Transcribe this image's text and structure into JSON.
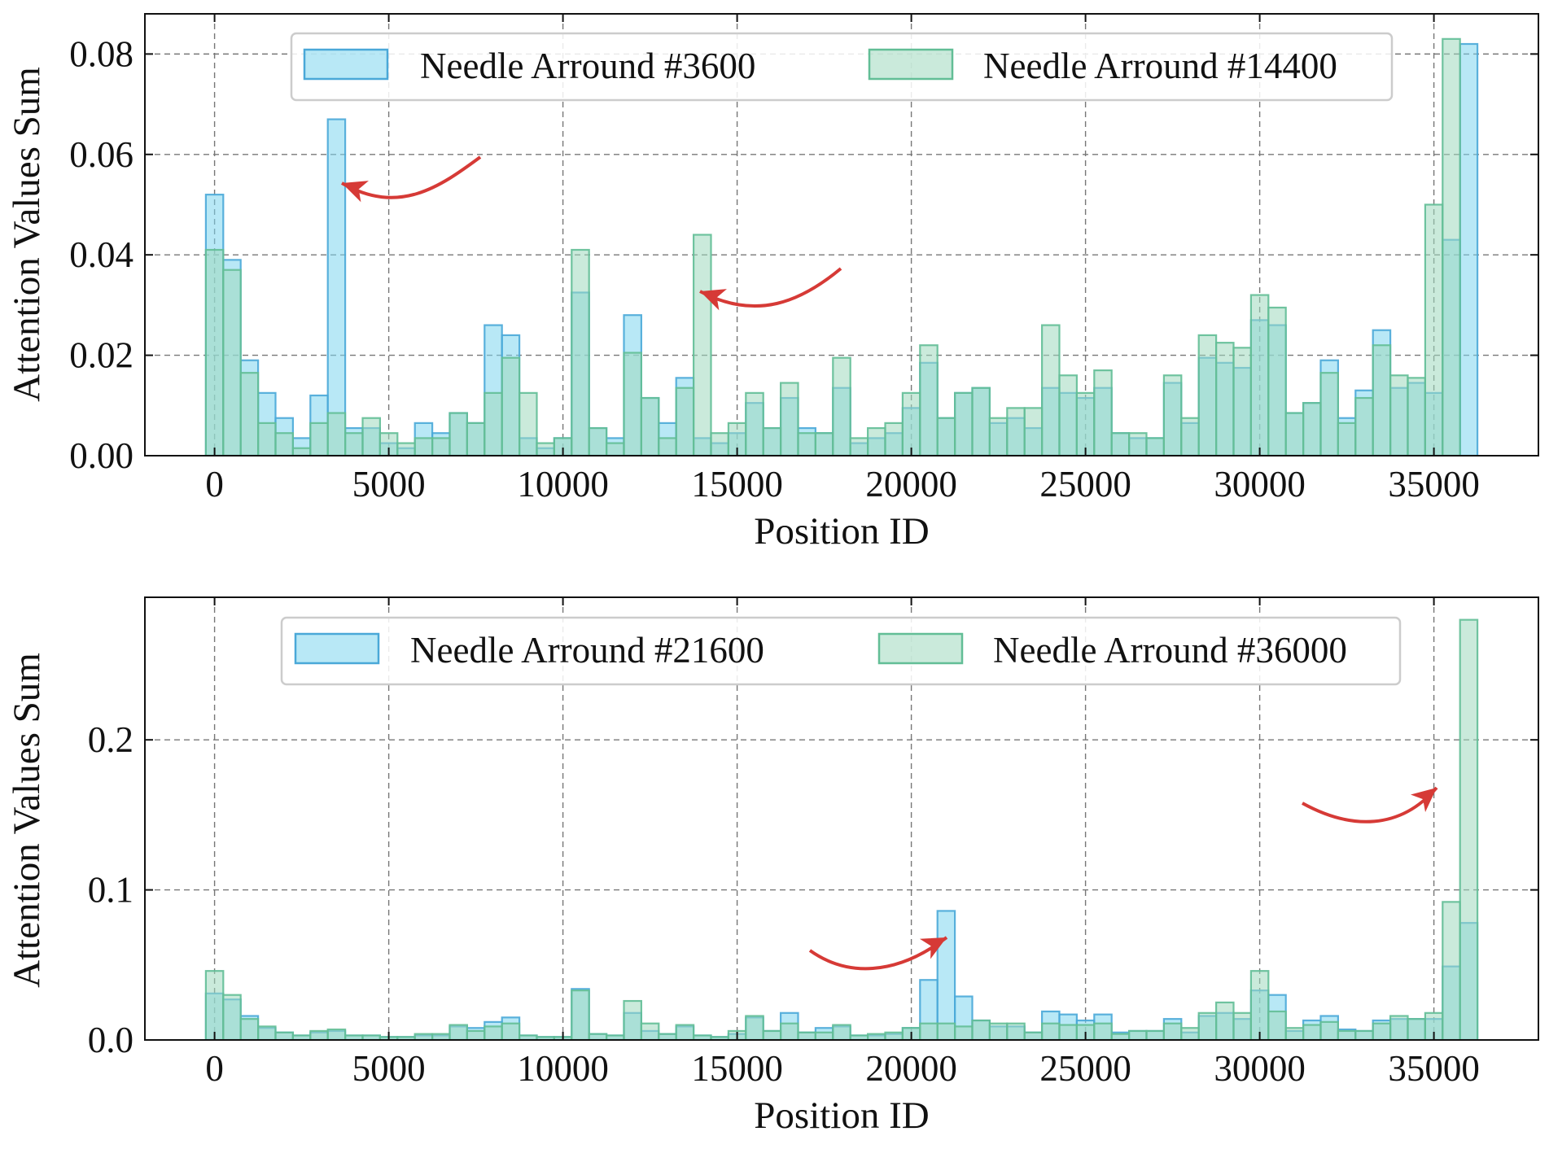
{
  "colors": {
    "series1_fill": "#7dd6ee",
    "series1_edge": "#4aa8d8",
    "series2_fill": "#9fd9bd",
    "series2_edge": "#62be96",
    "arrow": "#d63a36",
    "grid": "#777777"
  },
  "chart_data": [
    {
      "type": "bar",
      "histogram": true,
      "bin_width": 500,
      "xlabel": "Position ID",
      "ylabel": "Attention Values Sum",
      "xlim": [
        -2000,
        38000
      ],
      "ylim": [
        0,
        0.088
      ],
      "xticks": [
        0,
        5000,
        10000,
        15000,
        20000,
        25000,
        30000,
        35000
      ],
      "xtick_labels": [
        "0",
        "5000",
        "10000",
        "15000",
        "20000",
        "25000",
        "30000",
        "35000"
      ],
      "yticks": [
        0,
        0.02,
        0.04,
        0.06,
        0.08
      ],
      "ytick_labels": [
        "0.00",
        "0.02",
        "0.04",
        "0.06",
        "0.08"
      ],
      "grid": true,
      "legend_position": "top",
      "annotations": [
        "arrow pointing to needle bar near 3600",
        "arrow pointing to needle bar near 14400"
      ],
      "series": [
        {
          "name": "Needle Arround #3600",
          "x": [
            0,
            500,
            1000,
            1500,
            2000,
            2500,
            3000,
            3500,
            4000,
            4500,
            5000,
            5500,
            6000,
            6500,
            7000,
            7500,
            8000,
            8500,
            9000,
            9500,
            10000,
            10500,
            11000,
            11500,
            12000,
            12500,
            13000,
            13500,
            14000,
            14500,
            15000,
            15500,
            16000,
            16500,
            17000,
            17500,
            18000,
            18500,
            19000,
            19500,
            20000,
            20500,
            21000,
            21500,
            22000,
            22500,
            23000,
            23500,
            24000,
            24500,
            25000,
            25500,
            26000,
            26500,
            27000,
            27500,
            28000,
            28500,
            29000,
            29500,
            30000,
            30500,
            31000,
            31500,
            32000,
            32500,
            33000,
            33500,
            34000,
            34500,
            35000,
            35500,
            36000
          ],
          "values": [
            0.052,
            0.039,
            0.019,
            0.0125,
            0.0075,
            0.0035,
            0.012,
            0.067,
            0.0055,
            0.0055,
            0.0025,
            0.0015,
            0.0065,
            0.0045,
            0.0085,
            0.0065,
            0.026,
            0.024,
            0.0035,
            0.0015,
            0.0035,
            0.0325,
            0.0055,
            0.0035,
            0.028,
            0.0115,
            0.0065,
            0.0155,
            0.0035,
            0.0025,
            0.0045,
            0.0105,
            0.0055,
            0.0115,
            0.0055,
            0.0045,
            0.0135,
            0.0025,
            0.0035,
            0.0045,
            0.0095,
            0.0185,
            0.0075,
            0.0125,
            0.0135,
            0.0065,
            0.0075,
            0.0055,
            0.0135,
            0.0125,
            0.0115,
            0.0135,
            0.0045,
            0.0035,
            0.0035,
            0.0145,
            0.0065,
            0.0195,
            0.0185,
            0.0175,
            0.027,
            0.026,
            0.0085,
            0.0105,
            0.019,
            0.0075,
            0.013,
            0.025,
            0.0135,
            0.0145,
            0.0125,
            0.043,
            0.082
          ]
        },
        {
          "name": "Needle Arround #14400",
          "x": [
            0,
            500,
            1000,
            1500,
            2000,
            2500,
            3000,
            3500,
            4000,
            4500,
            5000,
            5500,
            6000,
            6500,
            7000,
            7500,
            8000,
            8500,
            9000,
            9500,
            10000,
            10500,
            11000,
            11500,
            12000,
            12500,
            13000,
            13500,
            14000,
            14500,
            15000,
            15500,
            16000,
            16500,
            17000,
            17500,
            18000,
            18500,
            19000,
            19500,
            20000,
            20500,
            21000,
            21500,
            22000,
            22500,
            23000,
            23500,
            24000,
            24500,
            25000,
            25500,
            26000,
            26500,
            27000,
            27500,
            28000,
            28500,
            29000,
            29500,
            30000,
            30500,
            31000,
            31500,
            32000,
            32500,
            33000,
            33500,
            34000,
            34500,
            35000,
            35500,
            36000
          ],
          "values": [
            0.041,
            0.037,
            0.0165,
            0.0065,
            0.0045,
            0.0015,
            0.0065,
            0.0085,
            0.0045,
            0.0075,
            0.0045,
            0.0025,
            0.0035,
            0.0035,
            0.0085,
            0.0065,
            0.0125,
            0.0195,
            0.0125,
            0.0025,
            0.0035,
            0.041,
            0.0055,
            0.0025,
            0.0205,
            0.0115,
            0.0035,
            0.0135,
            0.044,
            0.0045,
            0.0065,
            0.0125,
            0.0055,
            0.0145,
            0.0045,
            0.0045,
            0.0195,
            0.0035,
            0.0055,
            0.0065,
            0.0125,
            0.022,
            0.0075,
            0.0125,
            0.0135,
            0.0075,
            0.0095,
            0.0095,
            0.026,
            0.016,
            0.0125,
            0.017,
            0.0045,
            0.0045,
            0.0035,
            0.016,
            0.0075,
            0.024,
            0.0225,
            0.0215,
            0.032,
            0.0295,
            0.0085,
            0.0105,
            0.0165,
            0.0065,
            0.0115,
            0.022,
            0.016,
            0.0155,
            0.05,
            0.083,
            0.0
          ]
        }
      ]
    },
    {
      "type": "bar",
      "histogram": true,
      "bin_width": 500,
      "xlabel": "Position ID",
      "ylabel": "Attention Values Sum",
      "xlim": [
        -2000,
        38000
      ],
      "ylim": [
        0,
        0.295
      ],
      "xticks": [
        0,
        5000,
        10000,
        15000,
        20000,
        25000,
        30000,
        35000
      ],
      "xtick_labels": [
        "0",
        "5000",
        "10000",
        "15000",
        "20000",
        "25000",
        "30000",
        "35000"
      ],
      "yticks": [
        0,
        0.1,
        0.2
      ],
      "ytick_labels": [
        "0.0",
        "0.1",
        "0.2"
      ],
      "grid": true,
      "legend_position": "top",
      "annotations": [
        "arrow pointing to needle bar near 21600",
        "arrow pointing to needle bar near 36000"
      ],
      "series": [
        {
          "name": "Needle Arround #21600",
          "x": [
            0,
            500,
            1000,
            1500,
            2000,
            2500,
            3000,
            3500,
            4000,
            4500,
            5000,
            5500,
            6000,
            6500,
            7000,
            7500,
            8000,
            8500,
            9000,
            9500,
            10000,
            10500,
            11000,
            11500,
            12000,
            12500,
            13000,
            13500,
            14000,
            14500,
            15000,
            15500,
            16000,
            16500,
            17000,
            17500,
            18000,
            18500,
            19000,
            19500,
            20000,
            20500,
            21000,
            21500,
            22000,
            22500,
            23000,
            23500,
            24000,
            24500,
            25000,
            25500,
            26000,
            26500,
            27000,
            27500,
            28000,
            28500,
            29000,
            29500,
            30000,
            30500,
            31000,
            31500,
            32000,
            32500,
            33000,
            33500,
            34000,
            34500,
            35000,
            35500,
            36000
          ],
          "values": [
            0.031,
            0.027,
            0.016,
            0.008,
            0.005,
            0.003,
            0.005,
            0.006,
            0.003,
            0.003,
            0.002,
            0.002,
            0.003,
            0.003,
            0.009,
            0.008,
            0.012,
            0.015,
            0.003,
            0.002,
            0.002,
            0.034,
            0.004,
            0.003,
            0.018,
            0.006,
            0.004,
            0.009,
            0.003,
            0.002,
            0.004,
            0.015,
            0.006,
            0.018,
            0.005,
            0.008,
            0.009,
            0.003,
            0.003,
            0.004,
            0.008,
            0.04,
            0.086,
            0.029,
            0.013,
            0.009,
            0.009,
            0.005,
            0.019,
            0.017,
            0.013,
            0.017,
            0.005,
            0.006,
            0.006,
            0.014,
            0.005,
            0.016,
            0.018,
            0.014,
            0.033,
            0.03,
            0.006,
            0.013,
            0.016,
            0.007,
            0.006,
            0.013,
            0.014,
            0.014,
            0.014,
            0.049,
            0.078
          ]
        },
        {
          "name": "Needle Arround #36000",
          "x": [
            0,
            500,
            1000,
            1500,
            2000,
            2500,
            3000,
            3500,
            4000,
            4500,
            5000,
            5500,
            6000,
            6500,
            7000,
            7500,
            8000,
            8500,
            9000,
            9500,
            10000,
            10500,
            11000,
            11500,
            12000,
            12500,
            13000,
            13500,
            14000,
            14500,
            15000,
            15500,
            16000,
            16500,
            17000,
            17500,
            18000,
            18500,
            19000,
            19500,
            20000,
            20500,
            21000,
            21500,
            22000,
            22500,
            23000,
            23500,
            24000,
            24500,
            25000,
            25500,
            26000,
            26500,
            27000,
            27500,
            28000,
            28500,
            29000,
            29500,
            30000,
            30500,
            31000,
            31500,
            32000,
            32500,
            33000,
            33500,
            34000,
            34500,
            35000,
            35500,
            36000
          ],
          "values": [
            0.046,
            0.03,
            0.014,
            0.009,
            0.005,
            0.003,
            0.006,
            0.007,
            0.003,
            0.003,
            0.002,
            0.002,
            0.004,
            0.004,
            0.01,
            0.006,
            0.009,
            0.011,
            0.003,
            0.002,
            0.002,
            0.033,
            0.004,
            0.003,
            0.026,
            0.011,
            0.004,
            0.01,
            0.003,
            0.002,
            0.006,
            0.016,
            0.006,
            0.011,
            0.005,
            0.005,
            0.01,
            0.003,
            0.004,
            0.005,
            0.008,
            0.011,
            0.011,
            0.009,
            0.013,
            0.011,
            0.011,
            0.005,
            0.011,
            0.01,
            0.01,
            0.011,
            0.004,
            0.006,
            0.006,
            0.011,
            0.008,
            0.018,
            0.025,
            0.018,
            0.046,
            0.019,
            0.008,
            0.01,
            0.012,
            0.006,
            0.006,
            0.011,
            0.016,
            0.014,
            0.018,
            0.092,
            0.28
          ]
        }
      ]
    }
  ]
}
